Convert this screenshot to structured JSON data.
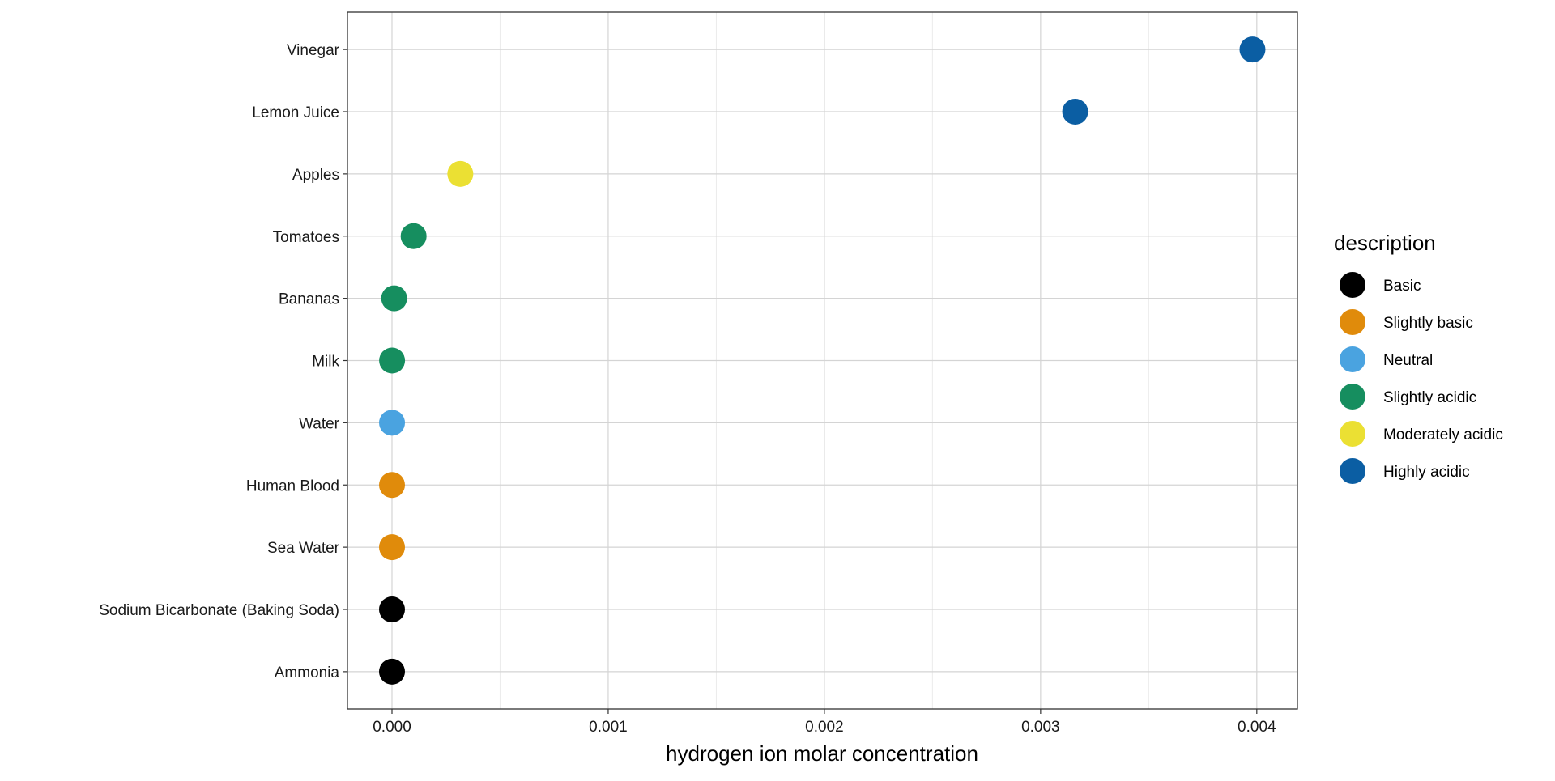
{
  "chart_data": {
    "type": "scatter",
    "title": "",
    "xlabel": "hydrogen ion molar concentration",
    "ylabel": "",
    "xlim": [
      -0.000206,
      0.004188
    ],
    "x_ticks": [
      0,
      0.001,
      0.002,
      0.003,
      0.004
    ],
    "x_tick_labels": [
      "0.000",
      "0.001",
      "0.002",
      "0.003",
      "0.004"
    ],
    "x_minor_ticks": [
      0.0005,
      0.0015,
      0.0025,
      0.0035
    ],
    "grid": true,
    "legend": {
      "title": "description",
      "placement": "right",
      "entries": [
        {
          "label": "Basic",
          "color": "#000000"
        },
        {
          "label": "Slightly basic",
          "color": "#E08B0B"
        },
        {
          "label": "Neutral",
          "color": "#4AA3E0"
        },
        {
          "label": "Slightly acidic",
          "color": "#168E5F"
        },
        {
          "label": "Moderately acidic",
          "color": "#EBE033"
        },
        {
          "label": "Highly acidic",
          "color": "#0B5EA3"
        }
      ]
    },
    "categories": [
      "Ammonia",
      "Sodium Bicarbonate (Baking Soda)",
      "Sea Water",
      "Human Blood",
      "Water",
      "Milk",
      "Bananas",
      "Tomatoes",
      "Apples",
      "Lemon Juice",
      "Vinegar"
    ],
    "points": [
      {
        "category": "Ammonia",
        "x": 1e-11,
        "description": "Basic"
      },
      {
        "category": "Sodium Bicarbonate (Baking Soda)",
        "x": 1e-09,
        "description": "Basic"
      },
      {
        "category": "Sea Water",
        "x": 1e-08,
        "description": "Slightly basic"
      },
      {
        "category": "Human Blood",
        "x": 4e-08,
        "description": "Slightly basic"
      },
      {
        "category": "Water",
        "x": 1e-07,
        "description": "Neutral"
      },
      {
        "category": "Milk",
        "x": 3.2e-07,
        "description": "Slightly acidic"
      },
      {
        "category": "Bananas",
        "x": 1e-05,
        "description": "Slightly acidic"
      },
      {
        "category": "Tomatoes",
        "x": 0.0001,
        "description": "Slightly acidic"
      },
      {
        "category": "Apples",
        "x": 0.000316,
        "description": "Moderately acidic"
      },
      {
        "category": "Lemon Juice",
        "x": 0.00316,
        "description": "Highly acidic"
      },
      {
        "category": "Vinegar",
        "x": 0.00398,
        "description": "Highly acidic"
      }
    ]
  }
}
